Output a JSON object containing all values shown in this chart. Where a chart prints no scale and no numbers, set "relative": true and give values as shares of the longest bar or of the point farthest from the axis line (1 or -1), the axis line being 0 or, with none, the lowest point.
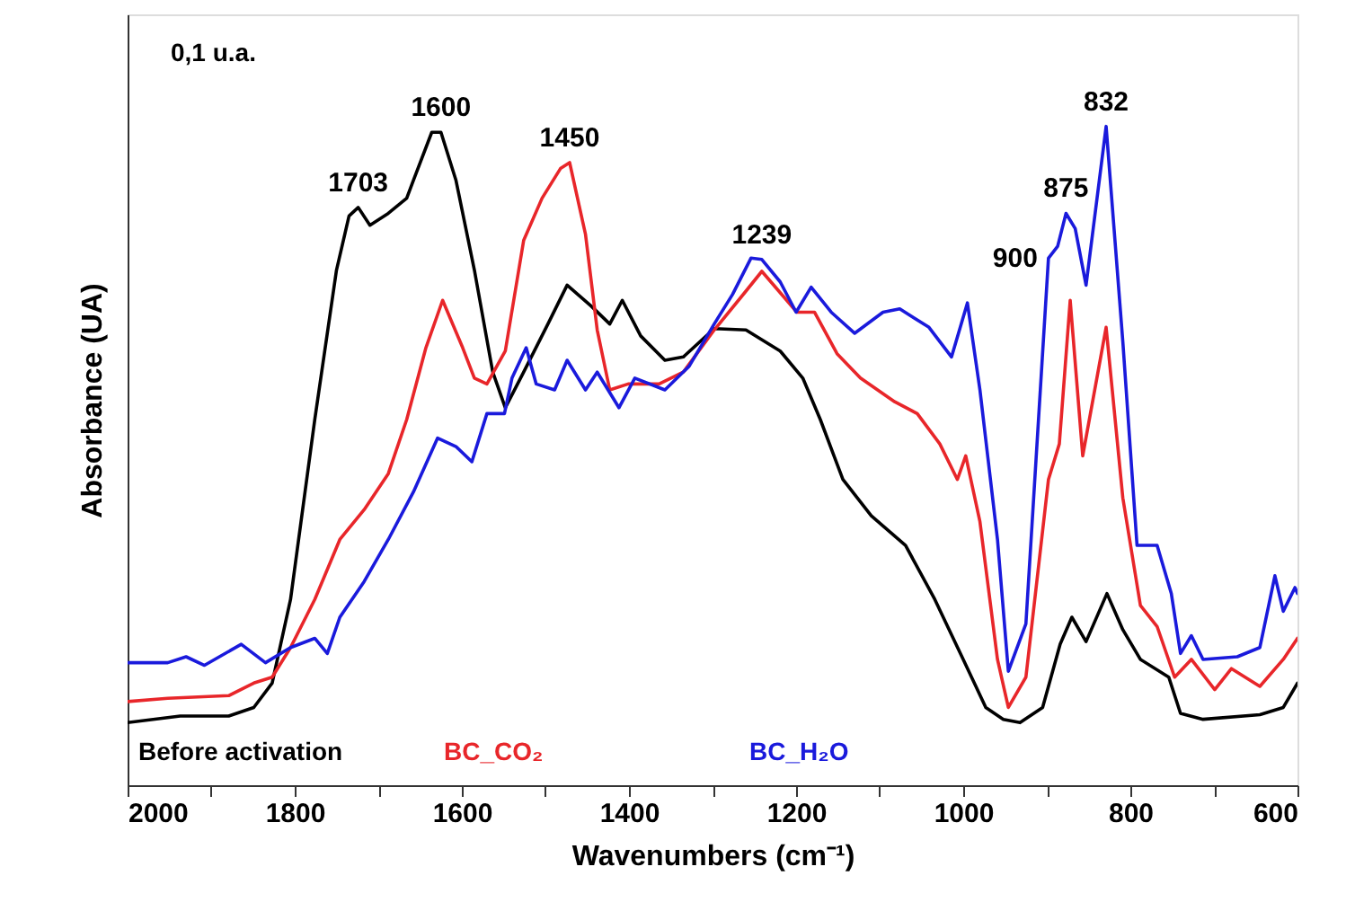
{
  "chart_data": {
    "type": "line",
    "relative": true,
    "xlabel": "Wavenumbers (cm⁻¹)",
    "ylabel": "Absorbance (UA)",
    "xlim": [
      2000,
      600
    ],
    "xticks": [
      2000,
      {
        "value": 1900,
        "label": null
      },
      1800,
      {
        "value": 1700,
        "label": null
      },
      1600,
      {
        "value": 1500,
        "label": null
      },
      1400,
      {
        "value": 1300,
        "label": null
      },
      1200,
      {
        "value": 1100,
        "label": null
      },
      1000,
      {
        "value": 900,
        "label": null
      },
      800,
      {
        "value": 700,
        "label": null
      },
      600
    ],
    "grid": false,
    "line_style": "solid",
    "marker": "none",
    "annotations": [
      "0,1 u.a.",
      {
        "text": "1703",
        "x": 1724,
        "y": 0.877
      },
      {
        "text": "1600",
        "x": 1625,
        "y": 0.991
      },
      {
        "text": "1450",
        "x": 1471,
        "y": 0.945
      },
      {
        "text": "1239",
        "x": 1241,
        "y": 0.798
      },
      {
        "text": "900",
        "x": 898,
        "y": 0.8
      },
      {
        "text": "875",
        "x": 877,
        "y": 0.868
      },
      {
        "text": "832",
        "x": 829,
        "y": 1.0
      }
    ],
    "series": [
      {
        "name": "Before activation",
        "color": "#000000",
        "x": [
          2000,
          1937,
          1879,
          1849,
          1827,
          1805,
          1776,
          1750,
          1735,
          1724,
          1710,
          1688,
          1666,
          1658,
          1636,
          1625,
          1607,
          1585,
          1563,
          1548,
          1526,
          1497,
          1474,
          1445,
          1423,
          1408,
          1386,
          1357,
          1335,
          1298,
          1260,
          1219,
          1192,
          1171,
          1144,
          1110,
          1069,
          1034,
          1000,
          973,
          952,
          932,
          905,
          884,
          870,
          853,
          828,
          809,
          788,
          754,
          740,
          713,
          645,
          617,
          600
        ],
        "values": [
          0.095,
          0.105,
          0.105,
          0.118,
          0.155,
          0.282,
          0.555,
          0.782,
          0.864,
          0.877,
          0.85,
          0.868,
          0.891,
          0.918,
          0.991,
          0.991,
          0.918,
          0.782,
          0.627,
          0.573,
          0.627,
          0.7,
          0.759,
          0.727,
          0.7,
          0.736,
          0.682,
          0.645,
          0.65,
          0.693,
          0.691,
          0.659,
          0.618,
          0.555,
          0.464,
          0.409,
          0.364,
          0.282,
          0.191,
          0.118,
          0.1,
          0.095,
          0.118,
          0.214,
          0.255,
          0.218,
          0.291,
          0.236,
          0.191,
          0.164,
          0.109,
          0.1,
          0.107,
          0.118,
          0.155
        ]
      },
      {
        "name": "BC_CO₂",
        "color": "#e8262a",
        "x": [
          2000,
          1952,
          1879,
          1849,
          1827,
          1805,
          1776,
          1746,
          1717,
          1688,
          1666,
          1643,
          1623,
          1599,
          1585,
          1570,
          1548,
          1526,
          1504,
          1482,
          1471,
          1452,
          1438,
          1423,
          1401,
          1364,
          1335,
          1298,
          1260,
          1241,
          1199,
          1178,
          1151,
          1123,
          1082,
          1055,
          1028,
          1007,
          997,
          980,
          959,
          946,
          925,
          898,
          885,
          872,
          857,
          829,
          809,
          788,
          768,
          747,
          727,
          699,
          679,
          645,
          617,
          600
        ],
        "values": [
          0.127,
          0.132,
          0.136,
          0.155,
          0.164,
          0.209,
          0.282,
          0.373,
          0.418,
          0.473,
          0.555,
          0.664,
          0.736,
          0.664,
          0.618,
          0.609,
          0.659,
          0.827,
          0.891,
          0.936,
          0.945,
          0.836,
          0.691,
          0.6,
          0.609,
          0.609,
          0.627,
          0.691,
          0.75,
          0.78,
          0.718,
          0.718,
          0.655,
          0.618,
          0.582,
          0.564,
          0.518,
          0.464,
          0.5,
          0.4,
          0.191,
          0.118,
          0.164,
          0.464,
          0.518,
          0.736,
          0.5,
          0.695,
          0.436,
          0.273,
          0.241,
          0.164,
          0.191,
          0.145,
          0.177,
          0.15,
          0.191,
          0.223
        ]
      },
      {
        "name": "BC_H₂O",
        "color": "#1a1adc",
        "x": [
          2000,
          1952,
          1930,
          1908,
          1864,
          1835,
          1805,
          1776,
          1761,
          1746,
          1717,
          1688,
          1658,
          1629,
          1607,
          1588,
          1570,
          1549,
          1540,
          1523,
          1511,
          1489,
          1474,
          1452,
          1438,
          1412,
          1393,
          1357,
          1328,
          1298,
          1276,
          1254,
          1241,
          1219,
          1200,
          1182,
          1158,
          1130,
          1096,
          1076,
          1041,
          1014,
          995,
          980,
          959,
          946,
          925,
          898,
          887,
          877,
          866,
          853,
          829,
          809,
          792,
          768,
          751,
          740,
          727,
          713,
          672,
          645,
          627,
          617,
          603,
          600
        ],
        "values": [
          0.186,
          0.186,
          0.195,
          0.182,
          0.214,
          0.186,
          0.209,
          0.223,
          0.2,
          0.255,
          0.309,
          0.373,
          0.445,
          0.527,
          0.514,
          0.491,
          0.564,
          0.564,
          0.618,
          0.664,
          0.609,
          0.6,
          0.645,
          0.6,
          0.627,
          0.573,
          0.618,
          0.6,
          0.636,
          0.7,
          0.745,
          0.8,
          0.798,
          0.764,
          0.718,
          0.756,
          0.718,
          0.686,
          0.718,
          0.723,
          0.695,
          0.65,
          0.732,
          0.6,
          0.373,
          0.173,
          0.245,
          0.8,
          0.818,
          0.868,
          0.845,
          0.759,
          1.0,
          0.673,
          0.364,
          0.364,
          0.291,
          0.2,
          0.227,
          0.191,
          0.195,
          0.209,
          0.318,
          0.264,
          0.3,
          0.291
        ]
      }
    ]
  }
}
